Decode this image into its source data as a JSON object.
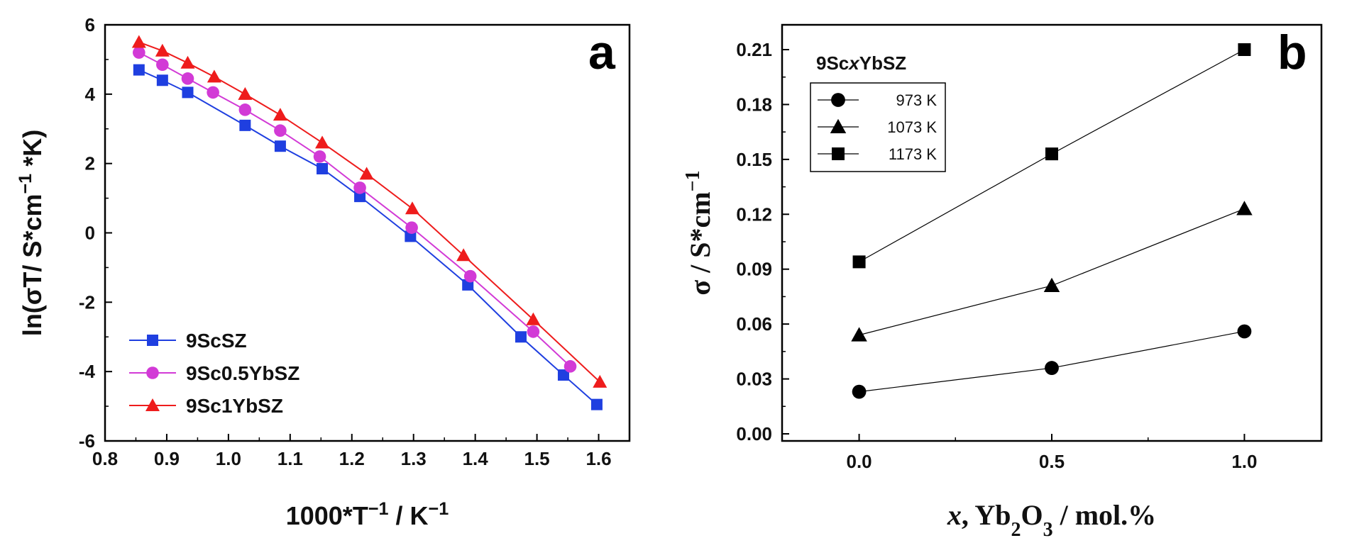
{
  "chart_data": [
    {
      "type": "line",
      "panel_label": "a",
      "xlabel": "1000*T⁻¹ / K⁻¹",
      "ylabel": "ln(σT/ S*cm⁻¹ *K)",
      "xlim": [
        0.8,
        1.65
      ],
      "ylim": [
        -6,
        6
      ],
      "xticks": [
        "0.8",
        "0.9",
        "1.0",
        "1.1",
        "1.2",
        "1.3",
        "1.4",
        "1.5",
        "1.6"
      ],
      "yticks": [
        "-6",
        "-4",
        "-2",
        "0",
        "2",
        "4",
        "6"
      ],
      "legend_position": "bottom-left",
      "grid": false,
      "series": [
        {
          "name": "9ScSZ",
          "color": "#1f3fe0",
          "marker": "square",
          "x": [
            0.855,
            0.893,
            0.934,
            1.027,
            1.084,
            1.152,
            1.213,
            1.295,
            1.388,
            1.474,
            1.543,
            1.597
          ],
          "y": [
            4.7,
            4.4,
            4.05,
            3.1,
            2.5,
            1.85,
            1.05,
            -0.1,
            -1.5,
            -3.0,
            -4.1,
            -4.95
          ]
        },
        {
          "name": "9Sc0.5YbSZ",
          "color": "#d23ad6",
          "marker": "circle",
          "x": [
            0.855,
            0.893,
            0.934,
            0.975,
            1.027,
            1.084,
            1.148,
            1.213,
            1.297,
            1.392,
            1.494,
            1.554
          ],
          "y": [
            5.2,
            4.85,
            4.45,
            4.05,
            3.55,
            2.95,
            2.2,
            1.3,
            0.15,
            -1.25,
            -2.85,
            -3.85
          ]
        },
        {
          "name": "9Sc1YbSZ",
          "color": "#ee1c1c",
          "marker": "triangle",
          "x": [
            0.855,
            0.893,
            0.934,
            0.977,
            1.027,
            1.084,
            1.152,
            1.224,
            1.298,
            1.381,
            1.494,
            1.602
          ],
          "y": [
            5.5,
            5.25,
            4.9,
            4.5,
            4.0,
            3.4,
            2.6,
            1.7,
            0.7,
            -0.65,
            -2.5,
            -4.3
          ]
        }
      ]
    },
    {
      "type": "line",
      "panel_label": "b",
      "group_label": "9ScxYbSZ",
      "xlabel": "x, Yb₂O₃ / mol.%",
      "ylabel": "σ / S*cm⁻¹",
      "xlim": [
        -0.2,
        1.2
      ],
      "ylim": [
        0,
        0.21
      ],
      "xticks": [
        "0.0",
        "0.5",
        "1.0"
      ],
      "yticks": [
        "0.00",
        "0.03",
        "0.06",
        "0.09",
        "0.12",
        "0.15",
        "0.18",
        "0.21"
      ],
      "legend_position": "top-left",
      "grid": false,
      "series": [
        {
          "name": "973 K",
          "color": "#000000",
          "marker": "circle",
          "x": [
            0.0,
            0.5,
            1.0
          ],
          "y": [
            0.023,
            0.036,
            0.056
          ]
        },
        {
          "name": "1073 K",
          "color": "#000000",
          "marker": "triangle",
          "x": [
            0.0,
            0.5,
            1.0
          ],
          "y": [
            0.054,
            0.081,
            0.123
          ]
        },
        {
          "name": "1173 K",
          "color": "#000000",
          "marker": "square",
          "x": [
            0.0,
            0.5,
            1.0
          ],
          "y": [
            0.094,
            0.153,
            0.21
          ]
        }
      ]
    }
  ]
}
